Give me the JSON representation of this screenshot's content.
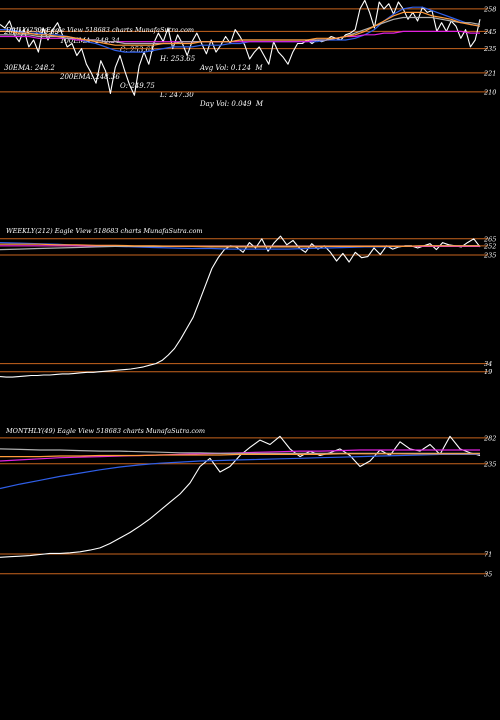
{
  "header_stats": {
    "row1": [
      "20EMA: 248.69",
      "100EMA: 248.34",
      "C: 253.65",
      "H: 253.65",
      "Avg Vol: 0.124  M"
    ],
    "row2": [
      "30EMA: 248.2",
      "200EMA: 248.36",
      "O: 249.75",
      "L: 247.30",
      "Day Vol: 0.049  M"
    ]
  },
  "panels": [
    {
      "id": "daily",
      "caption": "DAILY(250) Eagle  View  518683 charts MunafaSutra.com",
      "price_labels": [
        "258",
        "245",
        "235",
        "221",
        "210"
      ]
    },
    {
      "id": "weekly",
      "caption": "WEEKLY(212) Eagle  View  518683 charts MunafaSutra.com",
      "price_labels": [
        "265",
        "252",
        "235",
        "34",
        "19"
      ]
    },
    {
      "id": "monthly",
      "caption": "MONTHLY(49) Eagle  View  518683 charts MunafaSutra.com",
      "price_labels": [
        "282",
        "235",
        "71",
        "35"
      ]
    }
  ],
  "colors": {
    "background": "#000000",
    "price": "#ffffff",
    "ema_blue": "#2f5fe8",
    "ema_magenta": "#e020e0",
    "ema_gray": "#b0b0b0",
    "ema_orange": "#ff9a3a",
    "ref_line": "#c8641e"
  },
  "chart_data": [
    {
      "type": "line",
      "title": "DAILY(250) Eagle  View  518683 charts MunafaSutra.com",
      "ylim": [
        207,
        262
      ],
      "yticks": [
        258,
        245,
        235,
        221,
        210
      ],
      "reference_lines": [
        258,
        245,
        235,
        221,
        210
      ],
      "series": [
        {
          "role": "price",
          "color": "#ffffff",
          "values": [
            249,
            247,
            251,
            243,
            239,
            246,
            236,
            240,
            233,
            247,
            240,
            246,
            250,
            243,
            236,
            238,
            231,
            235,
            226,
            221,
            215,
            228,
            222,
            209,
            224,
            231,
            222,
            214,
            208,
            225,
            233,
            226,
            238,
            244,
            239,
            247,
            235,
            243,
            238,
            231,
            239,
            244,
            238,
            232,
            240,
            233,
            237,
            242,
            238,
            246,
            242,
            237,
            229,
            233,
            236,
            231,
            226,
            239,
            233,
            230,
            226,
            233,
            238,
            238,
            240,
            238,
            240,
            239,
            240,
            242,
            241,
            240,
            243,
            244,
            246,
            258,
            263,
            256,
            247,
            262,
            258,
            261,
            255,
            262,
            258,
            252,
            256,
            251,
            259,
            256,
            257,
            245,
            250,
            245,
            251,
            248,
            241,
            246,
            236,
            240,
            252
          ]
        },
        {
          "role": "ema",
          "color": "#2f5fe8",
          "values": [
            246,
            246,
            245,
            244,
            244,
            243,
            243,
            242,
            241,
            239,
            238,
            236,
            234,
            233,
            233,
            233,
            234,
            235,
            236,
            236,
            236,
            237,
            237,
            237,
            238,
            238,
            239,
            239,
            239,
            239,
            239,
            239,
            239,
            239,
            240,
            240,
            240,
            241,
            243,
            246,
            251,
            255,
            258,
            259,
            259,
            257,
            255,
            253,
            251,
            249,
            248
          ]
        },
        {
          "role": "ema",
          "color": "#e020e0",
          "values": [
            242,
            242,
            242,
            242,
            241,
            241,
            241,
            241,
            240,
            240,
            240,
            239,
            239,
            239,
            239,
            239,
            239,
            239,
            239,
            239,
            239,
            239,
            239,
            239,
            239,
            239,
            239,
            239,
            239,
            239,
            239,
            239,
            239,
            240,
            240,
            241,
            242,
            242,
            243,
            243,
            244,
            244,
            245,
            245,
            245,
            245,
            245,
            245,
            245,
            244,
            244
          ]
        },
        {
          "role": "ema",
          "color": "#b0b0b0",
          "values": [
            243,
            243,
            243,
            243,
            242,
            242,
            242,
            241,
            241,
            240,
            240,
            239,
            239,
            238,
            238,
            238,
            238,
            238,
            238,
            239,
            239,
            239,
            239,
            239,
            239,
            240,
            240,
            240,
            240,
            240,
            240,
            240,
            240,
            240,
            240,
            241,
            242,
            244,
            246,
            248,
            250,
            252,
            253,
            253,
            253,
            253,
            252,
            251,
            250,
            250,
            249
          ]
        },
        {
          "role": "ema",
          "color": "#ff9a3a",
          "values": [
            245,
            245,
            244,
            244,
            243,
            243,
            242,
            242,
            241,
            240,
            239,
            238,
            237,
            237,
            237,
            237,
            237,
            238,
            238,
            238,
            238,
            239,
            239,
            239,
            239,
            240,
            240,
            240,
            240,
            240,
            240,
            240,
            240,
            241,
            241,
            241,
            242,
            243,
            245,
            248,
            251,
            254,
            256,
            256,
            256,
            254,
            253,
            252,
            250,
            249,
            248
          ]
        }
      ]
    },
    {
      "type": "line",
      "title": "WEEKLY(212) Eagle  View  518683 charts MunafaSutra.com",
      "ylim": [
        0,
        285
      ],
      "yticks": [
        265,
        252,
        235,
        34,
        19
      ],
      "reference_lines": [
        265,
        252,
        235,
        34,
        19
      ],
      "series": [
        {
          "role": "price",
          "color": "#ffffff",
          "values": [
            10,
            9,
            9,
            10,
            11,
            12,
            12,
            13,
            13,
            14,
            15,
            15,
            16,
            17,
            18,
            18,
            19,
            20,
            21,
            22,
            23,
            24,
            26,
            28,
            31,
            34,
            40,
            50,
            62,
            80,
            100,
            120,
            150,
            180,
            210,
            230,
            245,
            252,
            249,
            240,
            258,
            248,
            265,
            242,
            258,
            270,
            254,
            262,
            248,
            240,
            256,
            246,
            252,
            240,
            224,
            238,
            222,
            240,
            230,
            232,
            248,
            236,
            252,
            246,
            250,
            252,
            252,
            248,
            252,
            256,
            245,
            258,
            254,
            252,
            250,
            258,
            265,
            250
          ]
        },
        {
          "role": "ema",
          "color": "#2f5fe8",
          "values": [
            258,
            257,
            256,
            255,
            253,
            252,
            251,
            250,
            249,
            248,
            247,
            247,
            246,
            246,
            246,
            246,
            247,
            248,
            249,
            250,
            250,
            251,
            251,
            252,
            252,
            252
          ]
        },
        {
          "role": "ema",
          "color": "#e020e0",
          "values": [
            252,
            252,
            252,
            252,
            252,
            252,
            252,
            251,
            251,
            251,
            251,
            251,
            251,
            251,
            251,
            251,
            251,
            251,
            251,
            251,
            251,
            251,
            251,
            251,
            251,
            251
          ]
        },
        {
          "role": "ema",
          "color": "#b0b0b0",
          "values": [
            245,
            246,
            247,
            248,
            249,
            250,
            251,
            251,
            251,
            251,
            251,
            251,
            251,
            251,
            251,
            251,
            251,
            251,
            251,
            251,
            251,
            251,
            252,
            252,
            252,
            252
          ]
        },
        {
          "role": "ema",
          "color": "#ff9a3a",
          "values": [
            255,
            255,
            255,
            254,
            254,
            253,
            253,
            252,
            252,
            251,
            251,
            250,
            250,
            250,
            250,
            250,
            250,
            251,
            251,
            251,
            251,
            251,
            252,
            252,
            252,
            252
          ]
        }
      ]
    },
    {
      "type": "line",
      "title": "MONTHLY(49) Eagle  View  518683 charts MunafaSutra.com",
      "ylim": [
        20,
        300
      ],
      "yticks": [
        282,
        235,
        71,
        35
      ],
      "reference_lines": [
        282,
        235,
        71,
        35
      ],
      "series": [
        {
          "role": "price",
          "color": "#ffffff",
          "values": [
            65,
            66,
            67,
            68,
            70,
            72,
            72,
            73,
            75,
            78,
            82,
            90,
            100,
            110,
            122,
            135,
            150,
            165,
            180,
            200,
            230,
            245,
            220,
            230,
            250,
            265,
            278,
            270,
            285,
            262,
            248,
            258,
            250,
            255,
            262,
            250,
            230,
            240,
            260,
            250,
            275,
            262,
            258,
            270,
            252,
            285,
            262,
            255,
            250
          ]
        },
        {
          "role": "ema",
          "color": "#2f5fe8",
          "values": [
            190,
            198,
            205,
            212,
            218,
            224,
            229,
            233,
            236,
            238,
            240,
            241,
            242,
            243,
            244,
            245,
            246,
            247,
            248,
            249,
            250,
            251,
            252,
            252,
            252
          ]
        },
        {
          "role": "ema",
          "color": "#e020e0",
          "values": [
            240,
            242,
            244,
            246,
            247,
            248,
            249,
            250,
            251,
            252,
            253,
            254,
            255,
            256,
            257,
            258,
            258,
            259,
            260,
            260,
            260,
            260,
            260,
            260,
            260
          ]
        },
        {
          "role": "ema",
          "color": "#b0b0b0",
          "values": [
            262,
            261,
            260,
            260,
            259,
            258,
            258,
            257,
            256,
            255,
            255,
            254,
            254,
            254,
            254,
            254,
            254,
            254,
            254,
            254,
            254,
            254,
            254,
            254,
            254
          ]
        },
        {
          "role": "ema",
          "color": "#ff9a3a",
          "values": [
            248,
            248,
            248,
            249,
            249,
            250,
            250,
            250,
            251,
            251,
            251,
            251,
            252,
            252,
            252,
            252,
            252,
            253,
            253,
            253,
            253,
            253,
            253,
            253,
            253
          ]
        }
      ]
    }
  ]
}
